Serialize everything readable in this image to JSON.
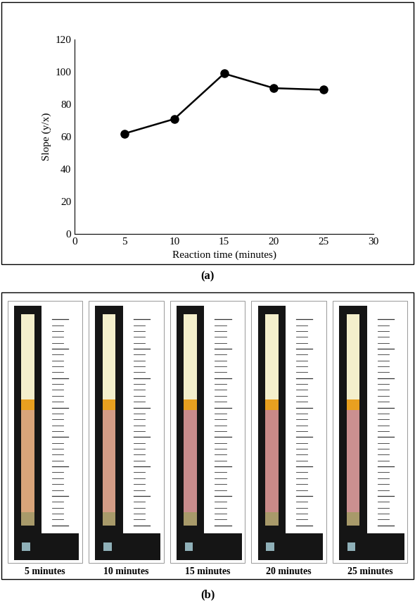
{
  "chart_data": {
    "type": "line",
    "x": [
      5,
      10,
      15,
      20,
      25
    ],
    "values": [
      62,
      71,
      99,
      90,
      89
    ],
    "xlabel": "Reaction time (minutes)",
    "ylabel": "Slope (y/x)",
    "xlim": [
      0,
      30
    ],
    "xticks": [
      0,
      5,
      10,
      15,
      20,
      25,
      30
    ],
    "ylim": [
      0,
      120
    ],
    "yticks": [
      0,
      20,
      40,
      60,
      80,
      100,
      120
    ],
    "color": "#000000",
    "marker": "circle",
    "line_style": "solid",
    "grid": false,
    "caption": "(a)"
  },
  "panel_b": {
    "caption": "(b)",
    "images": [
      "5 minutes",
      "10 minutes",
      "15 minutes",
      "20 minutes",
      "25 minutes"
    ]
  }
}
